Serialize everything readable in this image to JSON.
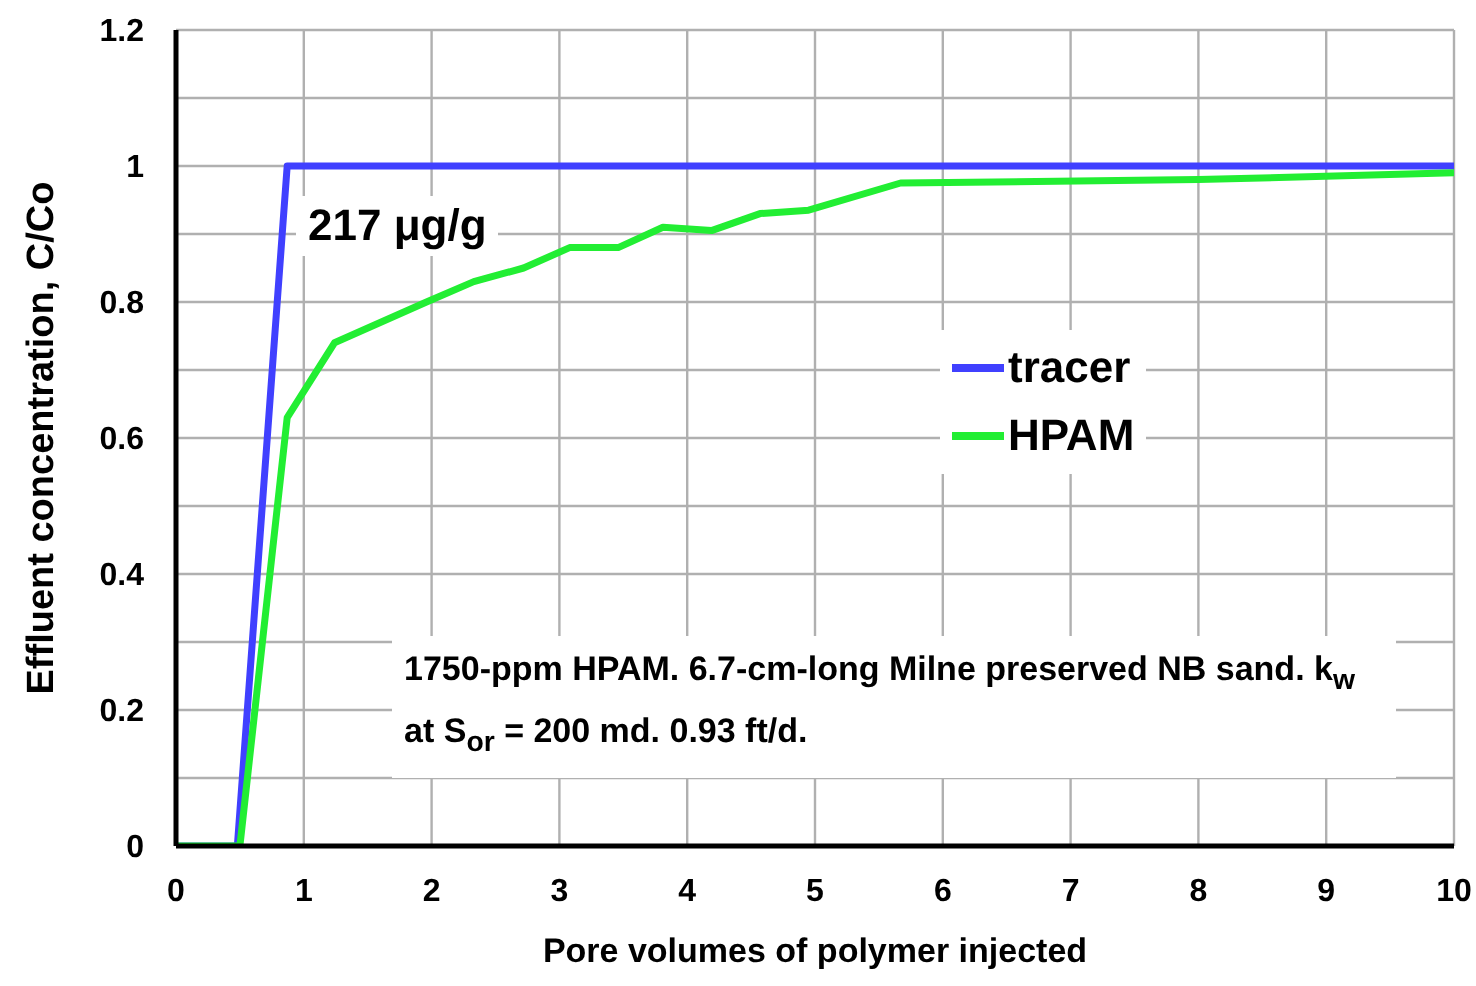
{
  "chart_data": {
    "type": "line",
    "xlabel": "Pore volumes of polymer injected",
    "ylabel": "Effluent concentration, C/Co",
    "xlim": [
      0,
      10
    ],
    "xticks": [
      0,
      1,
      2,
      3,
      4,
      5,
      6,
      7,
      8,
      9,
      10
    ],
    "ylim": [
      0,
      1.2
    ],
    "yticks": [
      0,
      {
        "value": 0.1,
        "label": null
      },
      0.2,
      {
        "value": 0.3,
        "label": null
      },
      0.4,
      {
        "value": 0.5,
        "label": null
      },
      0.6,
      {
        "value": 0.7,
        "label": null
      },
      0.8,
      {
        "value": 0.9,
        "label": null
      },
      1,
      {
        "value": 1.1,
        "label": null
      },
      1.2
    ],
    "grid": true,
    "legend": "right",
    "marker": "none",
    "line_style": "solid",
    "annotations": [
      "217 μg/g",
      "1750-ppm HPAM. 6.7-cm-long Milne preserved NB sand. k$_{w}$ at S$_{or}$ = 200 md. 0.93 ft/d."
    ],
    "series": [
      {
        "name": "tracer",
        "color": "#4040ff",
        "x": [
          0,
          0.48,
          0.87,
          10
        ],
        "values": [
          0,
          0,
          1,
          1
        ]
      },
      {
        "name": "HPAM",
        "color": "#22ee33",
        "x": [
          0,
          0.5,
          0.87,
          1.24,
          1.96,
          2.33,
          2.72,
          3.08,
          3.46,
          3.81,
          4.19,
          4.57,
          4.95,
          5.67,
          8,
          10
        ],
        "values": [
          0,
          0,
          0.63,
          0.74,
          0.8,
          0.83,
          0.85,
          0.88,
          0.88,
          0.91,
          0.905,
          0.93,
          0.935,
          0.975,
          0.98,
          0.99
        ]
      }
    ]
  }
}
